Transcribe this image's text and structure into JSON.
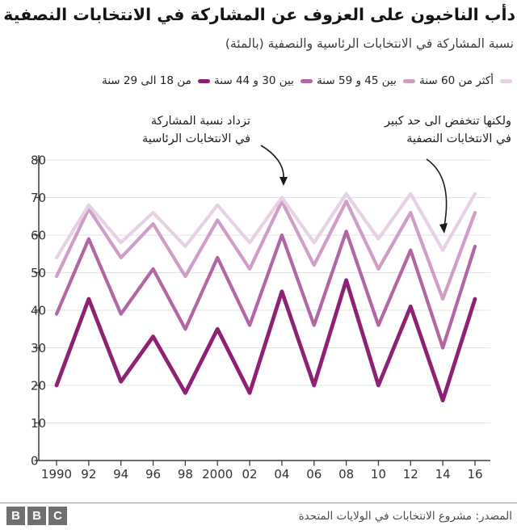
{
  "header": {
    "title": "دأب الناخبون على العزوف عن المشاركة في الانتخابات النصفية",
    "subtitle": "نسبة المشاركة في الانتخابات الرئاسية والنصفية (بالمئة)"
  },
  "annotations": {
    "presidential": {
      "line1": "تزداد نسبة المشاركة",
      "line2": "في الانتخابات الرئاسية"
    },
    "midterm": {
      "line1": "ولكنها تنخفض الى حد كبير",
      "line2": "في الانتخابات النصفية"
    }
  },
  "chart_data": {
    "type": "line",
    "x_labels": [
      "1990",
      "92",
      "94",
      "96",
      "98",
      "2000",
      "02",
      "04",
      "06",
      "08",
      "10",
      "12",
      "14",
      "16"
    ],
    "y_ticks": [
      0,
      10,
      20,
      30,
      40,
      50,
      60,
      70,
      80
    ],
    "ylim": [
      0,
      80
    ],
    "grid": true,
    "legend_position": "top",
    "series": [
      {
        "name": "من 18 الى 29 سنة",
        "color": "#8e2173",
        "values": [
          20,
          43,
          21,
          33,
          18,
          35,
          18,
          45,
          20,
          48,
          20,
          41,
          16,
          43
        ]
      },
      {
        "name": "بين 30 و 44 سنة",
        "color": "#b266a4",
        "values": [
          39,
          59,
          39,
          51,
          35,
          54,
          36,
          60,
          36,
          61,
          36,
          56,
          30,
          57
        ]
      },
      {
        "name": "بين 45 و 59 سنة",
        "color": "#cf9dc6",
        "values": [
          49,
          67,
          54,
          63,
          49,
          64,
          51,
          69,
          52,
          69,
          51,
          66,
          43,
          66
        ]
      },
      {
        "name": "أكثر من 60 سنة",
        "color": "#e6d2e4",
        "values": [
          54,
          68,
          58,
          66,
          57,
          68,
          58,
          70,
          58,
          71,
          59,
          71,
          56,
          71
        ]
      }
    ]
  },
  "footer": {
    "source": "المصدر: مشروع الانتخابات في الولايات المتحدة",
    "logo_letters": [
      "B",
      "B",
      "C"
    ]
  }
}
